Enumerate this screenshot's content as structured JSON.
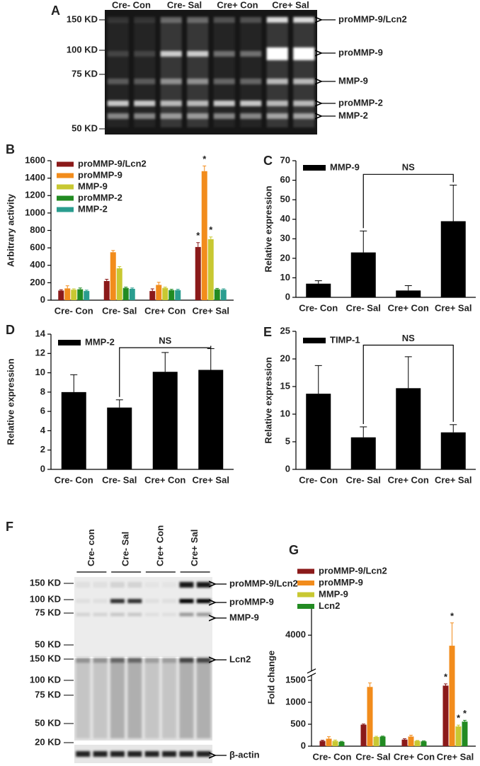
{
  "gel_a": {
    "panel_label": "A",
    "lanes": [
      "Cre- Con",
      "Cre- Sal",
      "Cre+ Con",
      "Cre+ Sal"
    ],
    "markers": [
      "150 KD",
      "100 KD",
      "75 KD",
      "50 KD"
    ],
    "bands": [
      "proMMP-9/Lcn2",
      "proMMP-9",
      "MMP-9",
      "proMMP-2",
      "MMP-2"
    ]
  },
  "gel_f": {
    "panel_label": "F",
    "lanes": [
      "Cre- con",
      "Cre- Sal",
      "Cre+ Con",
      "Cre+ Sal"
    ],
    "markers_top": [
      "150 KD",
      "100 KD",
      "75 KD",
      "50 KD"
    ],
    "markers_bottom": [
      "150 KD",
      "100 KD",
      "75 KD",
      "50 KD",
      "20 KD"
    ],
    "bands": [
      "proMMP-9/Lcn2",
      "proMMP-9",
      "MMP-9",
      "Lcn2"
    ],
    "loading_control": "β-actin"
  },
  "chart_data": [
    {
      "type": "bar",
      "panel_label": "B",
      "y_label": "Arbitrary activity",
      "categories": [
        "Cre- Con",
        "Cre- Sal",
        "Cre+ Con",
        "Cre+ Sal"
      ],
      "series": [
        {
          "name": "proMMP-9/Lcn2",
          "color": "#8b1a1a",
          "values": [
            110,
            220,
            105,
            610
          ],
          "errors": [
            10,
            20,
            25,
            50
          ]
        },
        {
          "name": "proMMP-9",
          "color": "#f28c1c",
          "values": [
            135,
            550,
            175,
            1480
          ],
          "errors": [
            30,
            20,
            30,
            60
          ]
        },
        {
          "name": "MMP-9",
          "color": "#c8c832",
          "values": [
            120,
            365,
            140,
            700
          ],
          "errors": [
            10,
            20,
            10,
            25
          ]
        },
        {
          "name": "proMMP-2",
          "color": "#228b22",
          "values": [
            125,
            140,
            115,
            125
          ],
          "errors": [
            15,
            10,
            10,
            10
          ]
        },
        {
          "name": "MMP-2",
          "color": "#2a9d8f",
          "values": [
            105,
            130,
            115,
            120
          ],
          "errors": [
            10,
            10,
            10,
            10
          ]
        }
      ],
      "ylim": [
        0,
        1600
      ],
      "yticks": [
        0,
        200,
        400,
        600,
        800,
        1000,
        1200,
        1400,
        1600
      ],
      "annotations": [
        {
          "text": "*",
          "series": 0,
          "category": 3
        },
        {
          "text": "*",
          "series": 1,
          "category": 3
        },
        {
          "text": "*",
          "series": 2,
          "category": 3
        }
      ]
    },
    {
      "type": "bar",
      "panel_label": "C",
      "y_label": "Relative expression",
      "categories": [
        "Cre- Con",
        "Cre- Sal",
        "Cre+ Con",
        "Cre+ Sal"
      ],
      "series": [
        {
          "name": "MMP-9",
          "color": "#000000",
          "values": [
            7,
            23,
            3.5,
            39
          ],
          "errors": [
            1.5,
            11,
            2.5,
            18.5
          ]
        }
      ],
      "ylim": [
        0,
        70
      ],
      "yticks": [
        0,
        10,
        20,
        30,
        40,
        50,
        60,
        70
      ],
      "bracket": {
        "text": "NS",
        "from": 1,
        "to": 3
      }
    },
    {
      "type": "bar",
      "panel_label": "D",
      "y_label": "Relative expression",
      "categories": [
        "Cre- Con",
        "Cre- Sal",
        "Cre+ Con",
        "Cre+ Sal"
      ],
      "series": [
        {
          "name": "MMP-2",
          "color": "#000000",
          "values": [
            8,
            6.4,
            10.1,
            10.3
          ],
          "errors": [
            1.8,
            0.8,
            2,
            2.2
          ]
        }
      ],
      "ylim": [
        0,
        14
      ],
      "yticks": [
        0,
        2,
        4,
        6,
        8,
        10,
        12,
        14
      ],
      "bracket": {
        "text": "NS",
        "from": 1,
        "to": 3
      }
    },
    {
      "type": "bar",
      "panel_label": "E",
      "y_label": "Relative expression",
      "categories": [
        "Cre- Con",
        "Cre- Sal",
        "Cre+ Con",
        "Cre+ Sal"
      ],
      "series": [
        {
          "name": "TIMP-1",
          "color": "#000000",
          "values": [
            13.7,
            5.8,
            14.7,
            6.7
          ],
          "errors": [
            5.1,
            1.9,
            5.7,
            1.4
          ]
        }
      ],
      "ylim": [
        0,
        25
      ],
      "yticks": [
        0,
        5,
        10,
        15,
        20,
        25
      ],
      "bracket": {
        "text": "NS",
        "from": 1,
        "to": 3
      }
    },
    {
      "type": "bar",
      "panel_label": "G",
      "y_label": "Fold change",
      "categories": [
        "Cre- Con",
        "Cre- Sal",
        "Cre+ Con",
        "Cre+ Sal"
      ],
      "series": [
        {
          "name": "proMMP-9/Lcn2",
          "color": "#8b1a1a",
          "values": [
            120,
            490,
            150,
            1380
          ],
          "errors": [
            15,
            15,
            20,
            40
          ]
        },
        {
          "name": "proMMP-9",
          "color": "#f28c1c",
          "values": [
            170,
            1350,
            220,
            3760
          ],
          "errors": [
            45,
            90,
            30,
            520
          ]
        },
        {
          "name": "MMP-9",
          "color": "#c8c832",
          "values": [
            120,
            210,
            120,
            450
          ],
          "errors": [
            20,
            15,
            10,
            30
          ]
        },
        {
          "name": "Lcn2",
          "color": "#228b22",
          "values": [
            100,
            220,
            110,
            560
          ],
          "errors": [
            10,
            10,
            10,
            30
          ]
        }
      ],
      "ylim": [
        0,
        4600
      ],
      "ybreak": [
        1600,
        3200
      ],
      "yticks": [
        0,
        500,
        1000,
        1500,
        4000
      ],
      "annotations": [
        {
          "text": "*",
          "series": 0,
          "category": 3
        },
        {
          "text": "*",
          "series": 1,
          "category": 3
        },
        {
          "text": "*",
          "series": 2,
          "category": 3
        },
        {
          "text": "*",
          "series": 3,
          "category": 3
        }
      ]
    }
  ]
}
